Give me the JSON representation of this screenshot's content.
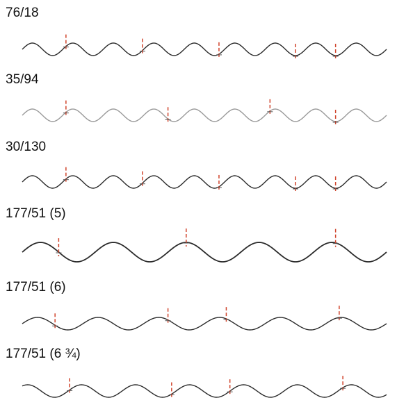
{
  "colors": {
    "wave": "#2b2b2b",
    "wave_faded": "#9a9a9a",
    "marker": "#d0442c",
    "cross": "#555555"
  },
  "profiles": [
    {
      "label": "76/18",
      "cycles": 9,
      "phase": -0.25,
      "markers": [
        0.12,
        0.33,
        0.54,
        0.75,
        0.86
      ],
      "faded": false
    },
    {
      "label": "35/94",
      "cycles": 9,
      "phase": -0.25,
      "markers": [
        0.12,
        0.4,
        0.68,
        0.86
      ],
      "faded": true
    },
    {
      "label": "30/130",
      "cycles": 9,
      "phase": -0.25,
      "markers": [
        0.12,
        0.33,
        0.54,
        0.75,
        0.86
      ],
      "faded": false
    },
    {
      "label": "177/51 (5)",
      "cycles": 5,
      "phase": -0.25,
      "markers": [
        0.1,
        0.45,
        0.86
      ],
      "faded": false
    },
    {
      "label": "177/51 (6)",
      "cycles": 6,
      "phase": -0.25,
      "markers": [
        0.09,
        0.4,
        0.56,
        0.87
      ],
      "faded": false
    },
    {
      "label": "177/51 (6 ¾)",
      "cycles": 6.75,
      "phase": -0.1,
      "markers": [
        0.13,
        0.41,
        0.57,
        0.88
      ],
      "faded": false
    }
  ]
}
